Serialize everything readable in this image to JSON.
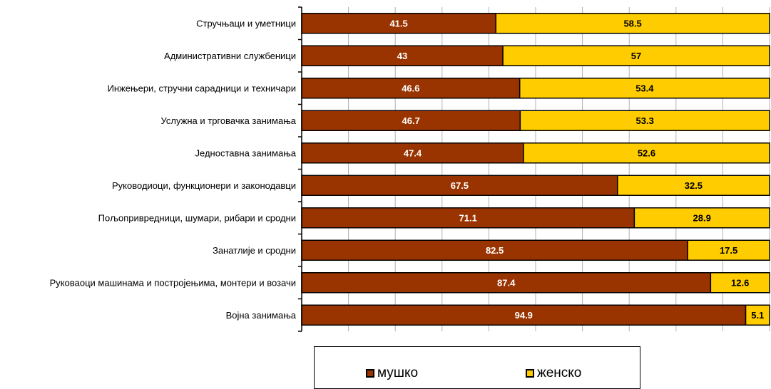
{
  "chart_data": {
    "type": "bar",
    "orientation": "horizontal",
    "stacked": true,
    "categories": [
      "Стручњаци и уметници",
      "Административни службеници",
      "Инжењери, стручни сарадници и техничари",
      "Услужна и трговачка занимања",
      "Једноставна занимања",
      "Руководиоци, функционери и законодавци",
      "Пољопривредници, шумари, рибари и сродни",
      "Занатлије и сродни",
      "Руковаоци машинама и постројењима, монтери и возачи",
      "Војна занимања"
    ],
    "series": [
      {
        "name": "мушко",
        "color": "#993300",
        "label_color": "#ffffff",
        "values": [
          41.5,
          43,
          46.6,
          46.7,
          47.4,
          67.5,
          71.1,
          82.5,
          87.4,
          94.9
        ]
      },
      {
        "name": "женско",
        "color": "#FFCC00",
        "label_color": "#000000",
        "values": [
          58.5,
          57,
          53.4,
          53.3,
          52.6,
          32.5,
          28.9,
          17.5,
          12.6,
          5.1
        ]
      }
    ],
    "xlim": [
      0,
      100
    ],
    "grid": true,
    "legend_position": "bottom"
  },
  "legend": {
    "items": [
      {
        "label": "мушко",
        "color": "#993300"
      },
      {
        "label": "женско",
        "color": "#FFCC00"
      }
    ]
  }
}
